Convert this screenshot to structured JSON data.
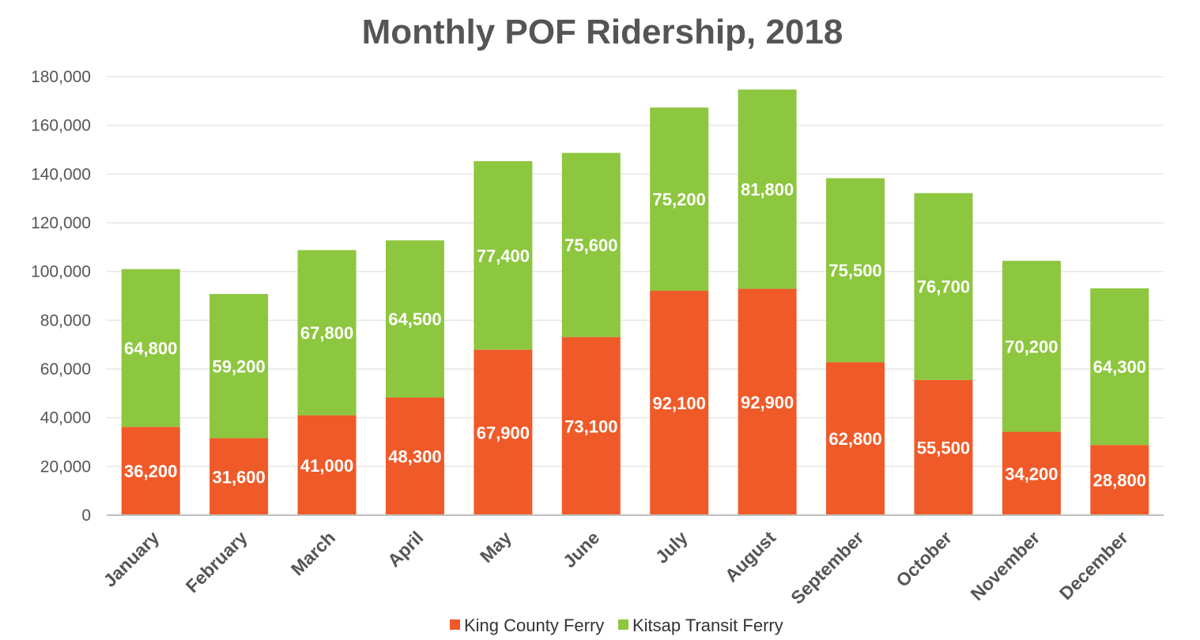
{
  "chart_data": {
    "type": "bar",
    "stacked": true,
    "title": "Monthly POF Ridership, 2018",
    "xlabel": "",
    "ylabel": "",
    "ylim": [
      0,
      180000
    ],
    "yticks": [
      0,
      20000,
      40000,
      60000,
      80000,
      100000,
      120000,
      140000,
      160000,
      180000
    ],
    "ytick_labels": [
      "0",
      "20,000",
      "40,000",
      "60,000",
      "80,000",
      "100,000",
      "120,000",
      "140,000",
      "160,000",
      "180,000"
    ],
    "grid": true,
    "legend_position": "bottom",
    "categories": [
      "January",
      "February",
      "March",
      "April",
      "May",
      "June",
      "July",
      "August",
      "September",
      "October",
      "November",
      "December"
    ],
    "series": [
      {
        "name": "King County Ferry",
        "color": "#F05A28",
        "values": [
          36200,
          31600,
          41000,
          48300,
          67900,
          73100,
          92100,
          92900,
          62800,
          55500,
          34200,
          28800
        ],
        "labels": [
          "36,200",
          "31,600",
          "41,000",
          "48,300",
          "67,900",
          "73,100",
          "92,100",
          "92,900",
          "62,800",
          "55,500",
          "34,200",
          "28,800"
        ]
      },
      {
        "name": "Kitsap Transit Ferry",
        "color": "#8DC63F",
        "values": [
          64800,
          59200,
          67800,
          64500,
          77400,
          75600,
          75200,
          81800,
          75500,
          76700,
          70200,
          64300
        ],
        "labels": [
          "64,800",
          "59,200",
          "67,800",
          "64,500",
          "77,400",
          "75,600",
          "75,200",
          "81,800",
          "75,500",
          "76,700",
          "70,200",
          "64,300"
        ]
      }
    ]
  }
}
